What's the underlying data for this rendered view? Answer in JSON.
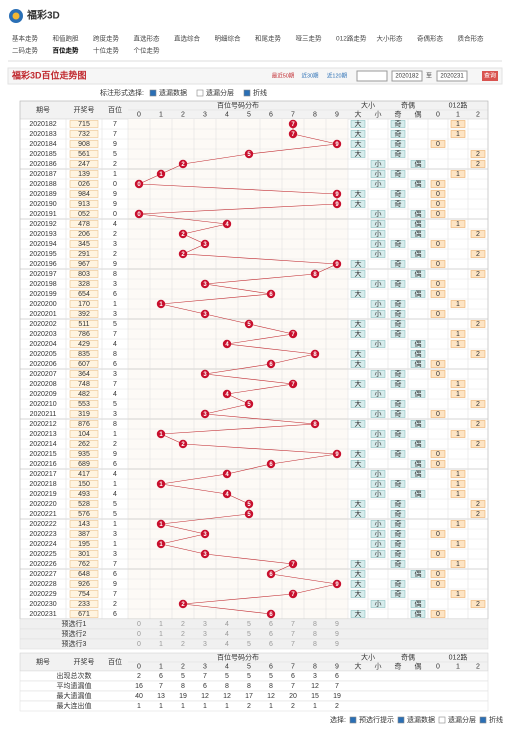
{
  "header": {
    "logo": "福彩3D"
  },
  "nav": {
    "row1": [
      "基本走势",
      "和值跑胆",
      "跨度走势",
      "直选形态",
      "直选综合",
      "明细综合",
      "和尾走势",
      "哑三走势",
      "012路走势",
      "大小形态",
      "奇偶形态",
      "质合形态"
    ],
    "row2": [
      "二码走势",
      "百位走势",
      "十位走势",
      "个位走势"
    ]
  },
  "title": "福彩3D百位走势图",
  "period_options": [
    "最近50期",
    "近30期",
    "近120期"
  ],
  "date_from": "2020182",
  "date_sep": "至",
  "date_to": "2020231",
  "query": "查询",
  "options": {
    "label": "标注形式选择:",
    "items": [
      {
        "label": "遗漏数据",
        "checked": true
      },
      {
        "label": "遗漏分层",
        "checked": false
      },
      {
        "label": "折线",
        "checked": true
      }
    ]
  },
  "table": {
    "headers": {
      "period": "期号",
      "draw": "开奖号",
      "hundreds": "百位",
      "distribution": "百位号码分布",
      "digits": [
        "0",
        "1",
        "2",
        "3",
        "4",
        "5",
        "6",
        "7",
        "8",
        "9"
      ],
      "size": "大小",
      "size_labels": [
        "大",
        "小"
      ],
      "parity": "奇偶",
      "parity_labels": [
        "奇",
        "偶"
      ],
      "route": "012路",
      "route_labels": [
        "0",
        "1",
        "2"
      ]
    },
    "rows": [
      {
        "period": "2020182",
        "draw": "715",
        "hundreds": 7
      },
      {
        "period": "2020183",
        "draw": "732",
        "hundreds": 7
      },
      {
        "period": "2020184",
        "draw": "908",
        "hundreds": 9
      },
      {
        "period": "2020185",
        "draw": "561",
        "hundreds": 5
      },
      {
        "period": "2020186",
        "draw": "247",
        "hundreds": 2
      },
      {
        "period": "2020187",
        "draw": "139",
        "hundreds": 1
      },
      {
        "period": "2020188",
        "draw": "026",
        "hundreds": 0
      },
      {
        "period": "2020189",
        "draw": "984",
        "hundreds": 9
      },
      {
        "period": "2020190",
        "draw": "913",
        "hundreds": 9
      },
      {
        "period": "2020191",
        "draw": "052",
        "hundreds": 0
      },
      {
        "period": "2020192",
        "draw": "478",
        "hundreds": 4
      },
      {
        "period": "2020193",
        "draw": "206",
        "hundreds": 2
      },
      {
        "period": "2020194",
        "draw": "345",
        "hundreds": 3
      },
      {
        "period": "2020195",
        "draw": "291",
        "hundreds": 2
      },
      {
        "period": "2020196",
        "draw": "967",
        "hundreds": 9
      },
      {
        "period": "2020197",
        "draw": "803",
        "hundreds": 8
      },
      {
        "period": "2020198",
        "draw": "328",
        "hundreds": 3
      },
      {
        "period": "2020199",
        "draw": "654",
        "hundreds": 6
      },
      {
        "period": "2020200",
        "draw": "170",
        "hundreds": 1
      },
      {
        "period": "2020201",
        "draw": "392",
        "hundreds": 3
      },
      {
        "period": "2020202",
        "draw": "511",
        "hundreds": 5
      },
      {
        "period": "2020203",
        "draw": "786",
        "hundreds": 7
      },
      {
        "period": "2020204",
        "draw": "429",
        "hundreds": 4
      },
      {
        "period": "2020205",
        "draw": "835",
        "hundreds": 8
      },
      {
        "period": "2020206",
        "draw": "607",
        "hundreds": 6
      },
      {
        "period": "2020207",
        "draw": "364",
        "hundreds": 3
      },
      {
        "period": "2020208",
        "draw": "748",
        "hundreds": 7
      },
      {
        "period": "2020209",
        "draw": "482",
        "hundreds": 4
      },
      {
        "period": "2020210",
        "draw": "553",
        "hundreds": 5
      },
      {
        "period": "2020211",
        "draw": "319",
        "hundreds": 3
      },
      {
        "period": "2020212",
        "draw": "876",
        "hundreds": 8
      },
      {
        "period": "2020213",
        "draw": "104",
        "hundreds": 1
      },
      {
        "period": "2020214",
        "draw": "262",
        "hundreds": 2
      },
      {
        "period": "2020215",
        "draw": "935",
        "hundreds": 9
      },
      {
        "period": "2020216",
        "draw": "689",
        "hundreds": 6
      },
      {
        "period": "2020217",
        "draw": "417",
        "hundreds": 4
      },
      {
        "period": "2020218",
        "draw": "150",
        "hundreds": 1
      },
      {
        "period": "2020219",
        "draw": "493",
        "hundreds": 4
      },
      {
        "period": "2020220",
        "draw": "528",
        "hundreds": 5
      },
      {
        "period": "2020221",
        "draw": "576",
        "hundreds": 5
      },
      {
        "period": "2020222",
        "draw": "143",
        "hundreds": 1
      },
      {
        "period": "2020223",
        "draw": "387",
        "hundreds": 3
      },
      {
        "period": "2020224",
        "draw": "195",
        "hundreds": 1
      },
      {
        "period": "2020225",
        "draw": "301",
        "hundreds": 3
      },
      {
        "period": "2020226",
        "draw": "762",
        "hundreds": 7
      },
      {
        "period": "2020227",
        "draw": "648",
        "hundreds": 6
      },
      {
        "period": "2020228",
        "draw": "926",
        "hundreds": 9
      },
      {
        "period": "2020229",
        "draw": "754",
        "hundreds": 7
      },
      {
        "period": "2020230",
        "draw": "233",
        "hundreds": 2
      },
      {
        "period": "2020231",
        "draw": "671",
        "hundreds": 6
      }
    ],
    "preselect": [
      "预选行1",
      "预选行2",
      "预选行3"
    ],
    "stats": [
      {
        "label": "出现总次数",
        "values": [
          2,
          6,
          5,
          7,
          5,
          5,
          5,
          6,
          3,
          6
        ]
      },
      {
        "label": "平均遗漏值",
        "values": [
          16,
          7,
          8,
          6,
          8,
          8,
          8,
          7,
          12,
          7
        ]
      },
      {
        "label": "最大遗漏值",
        "values": [
          40,
          13,
          19,
          12,
          12,
          17,
          12,
          20,
          15,
          19
        ]
      },
      {
        "label": "最大连出值",
        "values": [
          1,
          1,
          1,
          1,
          1,
          2,
          1,
          2,
          1,
          2
        ]
      }
    ]
  },
  "footer": {
    "label": "选择:",
    "items": [
      {
        "label": "预选行提示",
        "checked": true
      },
      {
        "label": "遗漏数据",
        "checked": true
      },
      {
        "label": "遗漏分层",
        "checked": false
      },
      {
        "label": "折线",
        "checked": true
      }
    ]
  }
}
